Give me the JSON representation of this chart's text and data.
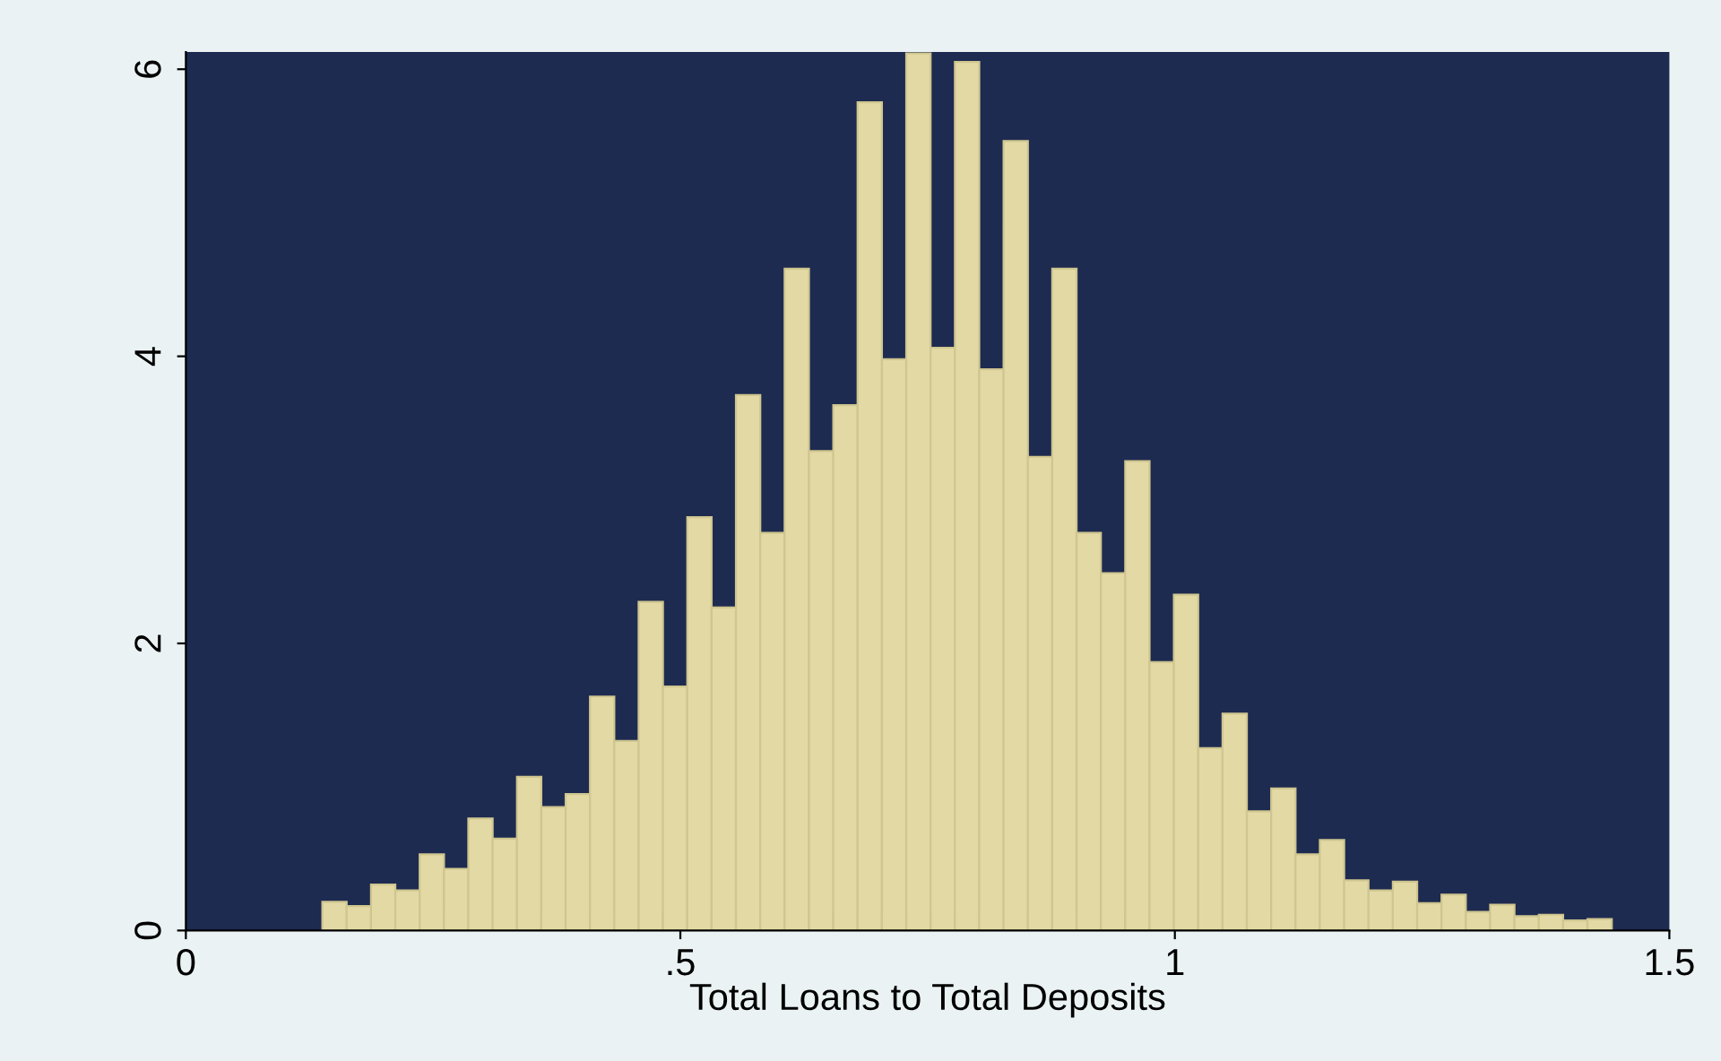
{
  "chart_data": {
    "type": "histogram",
    "xlabel": "Total Loans to Total Deposits",
    "bins": [
      0.138,
      0.1626,
      0.1872,
      0.2118,
      0.2364,
      0.261,
      0.2856,
      0.3102,
      0.3348,
      0.3594,
      0.384,
      0.4086,
      0.4332,
      0.4578,
      0.4824,
      0.507,
      0.5316,
      0.5562,
      0.5808,
      0.6054,
      0.63,
      0.6546,
      0.6792,
      0.7038,
      0.7284,
      0.753,
      0.7776,
      0.8022,
      0.8268,
      0.8514,
      0.876,
      0.9006,
      0.9252,
      0.9498,
      0.9744,
      0.999,
      1.0236,
      1.0482,
      1.0728,
      1.0974,
      1.122,
      1.1466,
      1.1712,
      1.1958,
      1.2204,
      1.245,
      1.2696,
      1.2942,
      1.3188,
      1.3434,
      1.368,
      1.3926,
      1.4172,
      1.4418
    ],
    "values": [
      0.2,
      0.17,
      0.32,
      0.28,
      0.53,
      0.43,
      0.78,
      0.64,
      1.07,
      0.86,
      0.95,
      1.63,
      1.32,
      2.29,
      1.7,
      2.88,
      2.25,
      3.73,
      2.77,
      4.61,
      3.34,
      3.66,
      5.77,
      3.98,
      6.11,
      4.06,
      6.05,
      3.91,
      5.5,
      3.3,
      4.61,
      2.77,
      2.49,
      3.27,
      1.87,
      2.34,
      1.27,
      1.51,
      0.83,
      0.99,
      0.53,
      0.63,
      0.35,
      0.28,
      0.34,
      0.19,
      0.25,
      0.13,
      0.18,
      0.1,
      0.11,
      0.07,
      0.08
    ],
    "color": "#e3d9a5",
    "xlim": [
      0,
      1.5
    ],
    "ylim": [
      0,
      6.12
    ],
    "xticks": [
      0,
      {
        "value": 0.5,
        "label": ".5"
      },
      1,
      1.5
    ],
    "yticks": [
      0,
      2,
      4,
      6
    ],
    "grid": false
  }
}
